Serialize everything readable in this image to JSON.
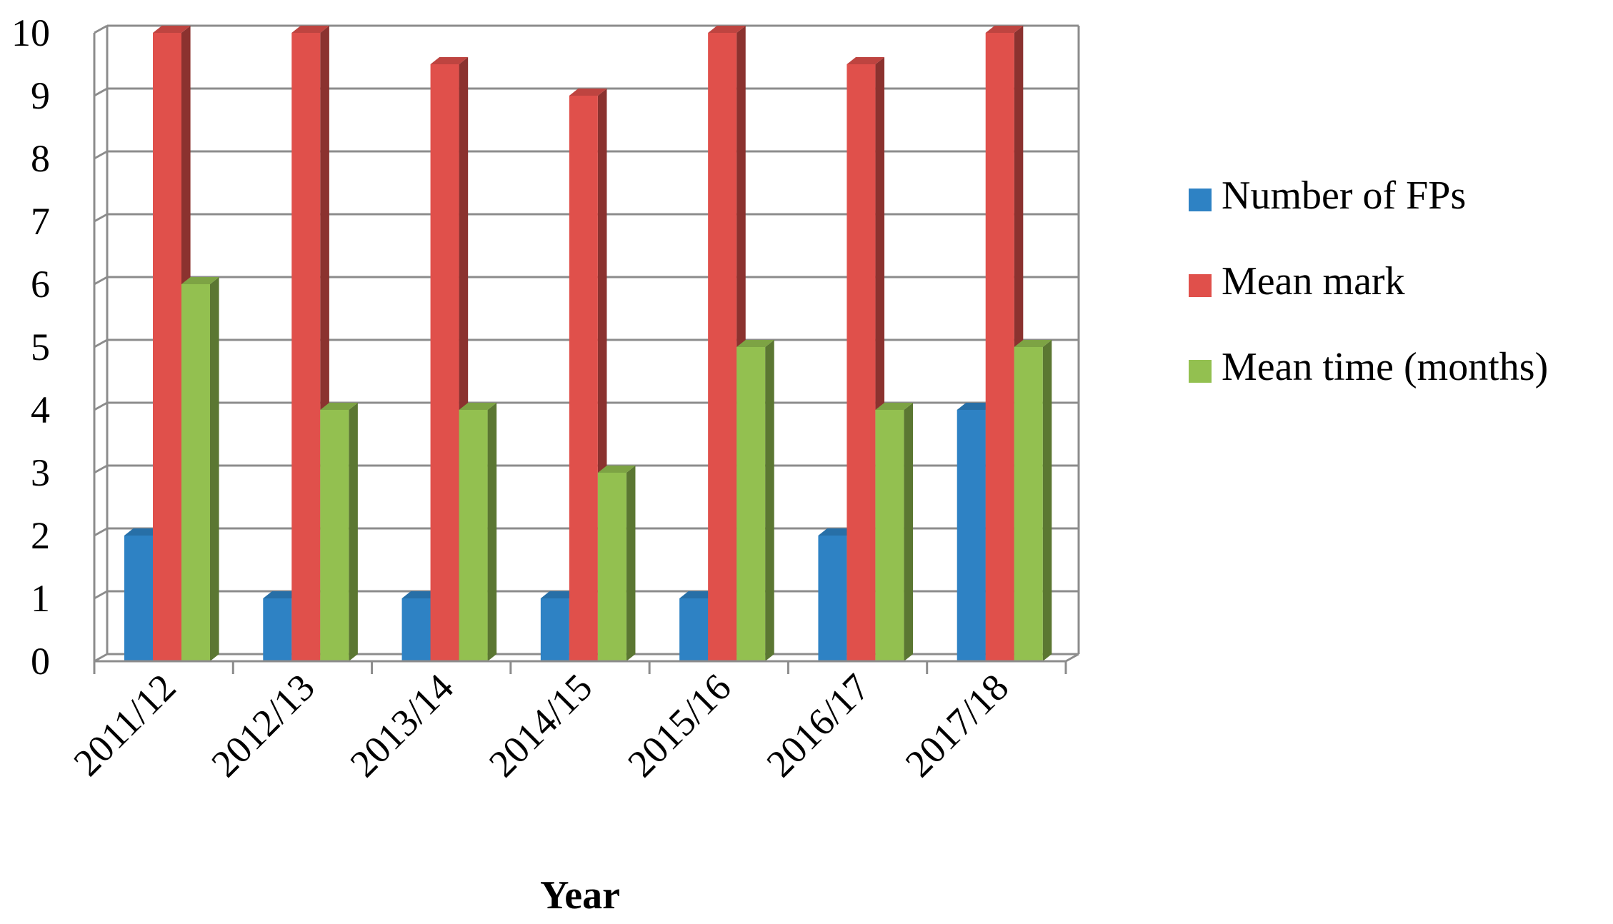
{
  "chart_data": {
    "type": "bar",
    "title": "",
    "xlabel": "Year",
    "ylabel": "",
    "ylim": [
      0,
      10
    ],
    "yticks": [
      "0",
      "1",
      "2",
      "3",
      "4",
      "5",
      "6",
      "7",
      "8",
      "9",
      "10"
    ],
    "categories": [
      "2011/12",
      "2012/13",
      "2013/14",
      "2014/15",
      "2015/16",
      "2016/17",
      "2017/18"
    ],
    "series": [
      {
        "name": "Number of FPs",
        "color": "#2E82C4",
        "values": [
          2,
          1,
          1,
          1,
          1,
          2,
          4
        ]
      },
      {
        "name": "Mean mark",
        "color": "#E0504B",
        "values": [
          10,
          10,
          9.5,
          9,
          10,
          9.5,
          10
        ]
      },
      {
        "name": "Mean time (months)",
        "color": "#93C050",
        "values": [
          6,
          4,
          4,
          3,
          5,
          4,
          5
        ]
      }
    ],
    "grid": true,
    "style": "3d-clustered-column",
    "legend_position": "right"
  }
}
